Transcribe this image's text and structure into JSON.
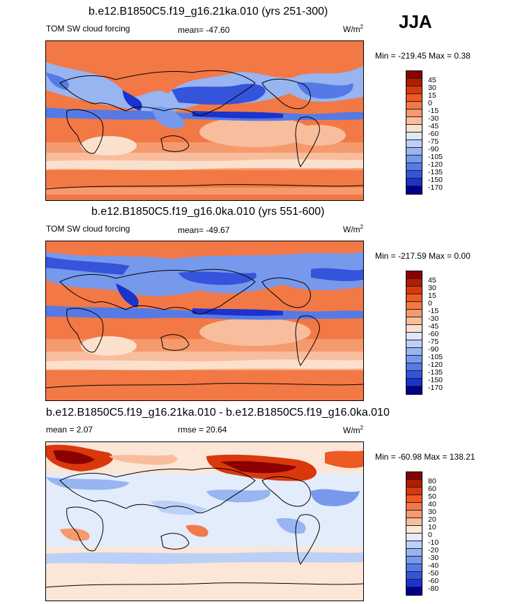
{
  "season": "JJA",
  "panels": [
    {
      "title": "b.e12.B1850C5.f19_g16.21ka.010 (yrs 251-300)",
      "left_label": "TOM SW cloud forcing",
      "mid_label": "mean=  -47.60",
      "units": "W/m",
      "units_exp": "2",
      "range_text": "Min = -219.45 Max =   0.38",
      "colorbar_labels": [
        "45",
        "30",
        "15",
        "0",
        "-15",
        "-30",
        "-45",
        "-60",
        "-75",
        "-90",
        "-105",
        "-120",
        "-135",
        "-150",
        "-170"
      ],
      "colorbar_colors": [
        "#8b0000",
        "#b21c00",
        "#d9380c",
        "#ee5a23",
        "#f27845",
        "#f59a6d",
        "#f8bd9d",
        "#fbe0cd",
        "#dde8fb",
        "#bbd0f7",
        "#98b4f1",
        "#7799ec",
        "#557ae6",
        "#3454db",
        "#1a33cd",
        "#00008b"
      ]
    },
    {
      "title": "b.e12.B1850C5.f19_g16.0ka.010 (yrs 551-600)",
      "left_label": "TOM SW cloud forcing",
      "mid_label": "mean=  -49.67",
      "units": "W/m",
      "units_exp": "2",
      "range_text": "Min = -217.59 Max =   0.00",
      "colorbar_labels": [
        "45",
        "30",
        "15",
        "0",
        "-15",
        "-30",
        "-45",
        "-60",
        "-75",
        "-90",
        "-105",
        "-120",
        "-135",
        "-150",
        "-170"
      ],
      "colorbar_colors": [
        "#8b0000",
        "#b21c00",
        "#d9380c",
        "#ee5a23",
        "#f27845",
        "#f59a6d",
        "#f8bd9d",
        "#fbe0cd",
        "#dde8fb",
        "#bbd0f7",
        "#98b4f1",
        "#7799ec",
        "#557ae6",
        "#3454db",
        "#1a33cd",
        "#00008b"
      ]
    },
    {
      "title": "b.e12.B1850C5.f19_g16.21ka.010 - b.e12.B1850C5.f19_g16.0ka.010",
      "left_label": "mean =   2.07",
      "mid_label": "rmse =  20.64",
      "units": "W/m",
      "units_exp": "2",
      "range_text": "Min = -60.98 Max = 138.21",
      "colorbar_labels": [
        "80",
        "60",
        "50",
        "40",
        "30",
        "20",
        "10",
        "0",
        "-10",
        "-20",
        "-30",
        "-40",
        "-50",
        "-60",
        "-80"
      ],
      "colorbar_colors": [
        "#8b0000",
        "#b21c00",
        "#d9380c",
        "#ee5a23",
        "#f27845",
        "#f59a6d",
        "#f8bd9d",
        "#fbe6d8",
        "#e2ecfb",
        "#bbd0f7",
        "#98b4f1",
        "#7799ec",
        "#557ae6",
        "#3454db",
        "#1a33cd",
        "#00008b"
      ]
    }
  ],
  "chart_data": [
    {
      "type": "heatmap",
      "title": "b.e12.B1850C5.f19_g16.21ka.010 (yrs 251-300)",
      "field": "TOM SW cloud forcing",
      "season": "JJA",
      "units": "W/m2",
      "mean": -47.6,
      "min": -219.45,
      "max": 0.38,
      "contour_levels": [
        -170,
        -150,
        -135,
        -120,
        -105,
        -90,
        -75,
        -60,
        -45,
        -30,
        -15,
        0,
        15,
        30,
        45
      ]
    },
    {
      "type": "heatmap",
      "title": "b.e12.B1850C5.f19_g16.0ka.010 (yrs 551-600)",
      "field": "TOM SW cloud forcing",
      "season": "JJA",
      "units": "W/m2",
      "mean": -49.67,
      "min": -217.59,
      "max": 0.0,
      "contour_levels": [
        -170,
        -150,
        -135,
        -120,
        -105,
        -90,
        -75,
        -60,
        -45,
        -30,
        -15,
        0,
        15,
        30,
        45
      ]
    },
    {
      "type": "heatmap",
      "title": "b.e12.B1850C5.f19_g16.21ka.010 - b.e12.B1850C5.f19_g16.0ka.010",
      "field": "difference",
      "season": "JJA",
      "units": "W/m2",
      "mean": 2.07,
      "rmse": 20.64,
      "min": -60.98,
      "max": 138.21,
      "contour_levels": [
        -80,
        -60,
        -50,
        -40,
        -30,
        -20,
        -10,
        0,
        10,
        20,
        30,
        40,
        50,
        60,
        80
      ]
    }
  ]
}
